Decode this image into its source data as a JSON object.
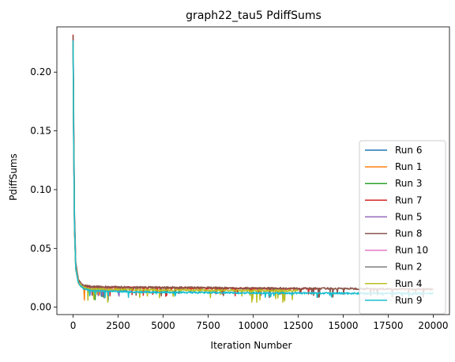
{
  "chart_data": {
    "type": "line",
    "title": "graph22_tau5 PdiffSums",
    "xlabel": "Iteration Number",
    "ylabel": "PdiffSums",
    "xlim": [
      -900,
      20900
    ],
    "ylim": [
      -0.0063,
      0.2385
    ],
    "xticks": [
      0,
      2500,
      5000,
      7500,
      10000,
      12500,
      15000,
      17500,
      20000
    ],
    "xtick_labels": [
      "0",
      "2500",
      "5000",
      "7500",
      "10000",
      "12500",
      "15000",
      "17500",
      "20000"
    ],
    "yticks": [
      0.0,
      0.05,
      0.1,
      0.15,
      0.2
    ],
    "ytick_labels": [
      "0.00",
      "0.05",
      "0.10",
      "0.15",
      "0.20"
    ],
    "grid": false,
    "legend_position": "lower-right",
    "series": [
      {
        "name": "Run 6",
        "color": "#1f77b4",
        "x": [
          0,
          30,
          80,
          150,
          300,
          600,
          1000,
          1500,
          2000,
          2500,
          3000
        ],
        "y": [
          0.225,
          0.15,
          0.07,
          0.035,
          0.022,
          0.017,
          0.016,
          0.0155,
          0.015,
          0.0148,
          0.0145
        ],
        "min_y": 0.005
      },
      {
        "name": "Run 1",
        "color": "#ff7f0e",
        "x": [
          0,
          30,
          80,
          150,
          300,
          600,
          1000,
          1500,
          2000
        ],
        "y": [
          0.224,
          0.14,
          0.065,
          0.032,
          0.02,
          0.016,
          0.0152,
          0.015,
          0.0148
        ],
        "min_y": 0.006
      },
      {
        "name": "Run 3",
        "color": "#2ca02c",
        "x": [
          0,
          30,
          80,
          150,
          300,
          600,
          1000,
          1500,
          2000
        ],
        "y": [
          0.226,
          0.15,
          0.068,
          0.033,
          0.021,
          0.0165,
          0.0155,
          0.015,
          0.0148
        ],
        "min_y": 0.005
      },
      {
        "name": "Run 7",
        "color": "#d62728",
        "x": [
          0,
          30,
          80,
          150,
          300,
          600,
          1000,
          2000,
          5000,
          8000,
          11000,
          13700
        ],
        "y": [
          0.232,
          0.16,
          0.075,
          0.035,
          0.022,
          0.018,
          0.0172,
          0.0168,
          0.0165,
          0.016,
          0.0158,
          0.0155
        ],
        "min_y": 0.009
      },
      {
        "name": "Run 5",
        "color": "#9467bd",
        "x": [
          0,
          30,
          80,
          150,
          300,
          600,
          1000,
          1500,
          2000,
          2600
        ],
        "y": [
          0.226,
          0.145,
          0.066,
          0.033,
          0.021,
          0.0165,
          0.0155,
          0.015,
          0.0148,
          0.0145
        ],
        "min_y": 0.006
      },
      {
        "name": "Run 8",
        "color": "#8c564b",
        "x": [
          0,
          30,
          80,
          150,
          300,
          600,
          1000,
          3000,
          6000,
          9000,
          12000,
          15000,
          18000,
          20000
        ],
        "y": [
          0.231,
          0.17,
          0.08,
          0.038,
          0.023,
          0.0185,
          0.0175,
          0.017,
          0.0168,
          0.0163,
          0.016,
          0.0158,
          0.0155,
          0.0153
        ],
        "min_y": 0.008
      },
      {
        "name": "Run 10",
        "color": "#e377c2",
        "x": [
          0,
          30,
          80,
          150,
          300,
          600,
          1000,
          1500,
          2000,
          2500
        ],
        "y": [
          0.225,
          0.15,
          0.07,
          0.034,
          0.021,
          0.0165,
          0.0155,
          0.015,
          0.0148,
          0.0146
        ],
        "min_y": 0.006
      },
      {
        "name": "Run 2",
        "color": "#7f7f7f",
        "x": [
          0,
          30,
          80,
          150,
          300,
          600,
          1000,
          1500,
          2000
        ],
        "y": [
          0.224,
          0.145,
          0.066,
          0.033,
          0.021,
          0.0162,
          0.0153,
          0.0149,
          0.0147
        ],
        "min_y": 0.006
      },
      {
        "name": "Run 4",
        "color": "#bcbd22",
        "x": [
          0,
          30,
          80,
          150,
          300,
          600,
          1000,
          3000,
          6000,
          9000,
          12000,
          12500
        ],
        "y": [
          0.226,
          0.15,
          0.07,
          0.034,
          0.021,
          0.0165,
          0.0155,
          0.015,
          0.0145,
          0.0143,
          0.014,
          0.014
        ],
        "min_y": 0.004
      },
      {
        "name": "Run 9",
        "color": "#17becf",
        "x": [
          0,
          30,
          80,
          150,
          300,
          600,
          1000,
          3000,
          6000,
          9000,
          12000,
          15000,
          18000,
          20000
        ],
        "y": [
          0.227,
          0.15,
          0.07,
          0.033,
          0.02,
          0.0155,
          0.014,
          0.013,
          0.0125,
          0.0122,
          0.012,
          0.0118,
          0.0118,
          0.0117
        ],
        "min_y": 0.008
      }
    ]
  }
}
